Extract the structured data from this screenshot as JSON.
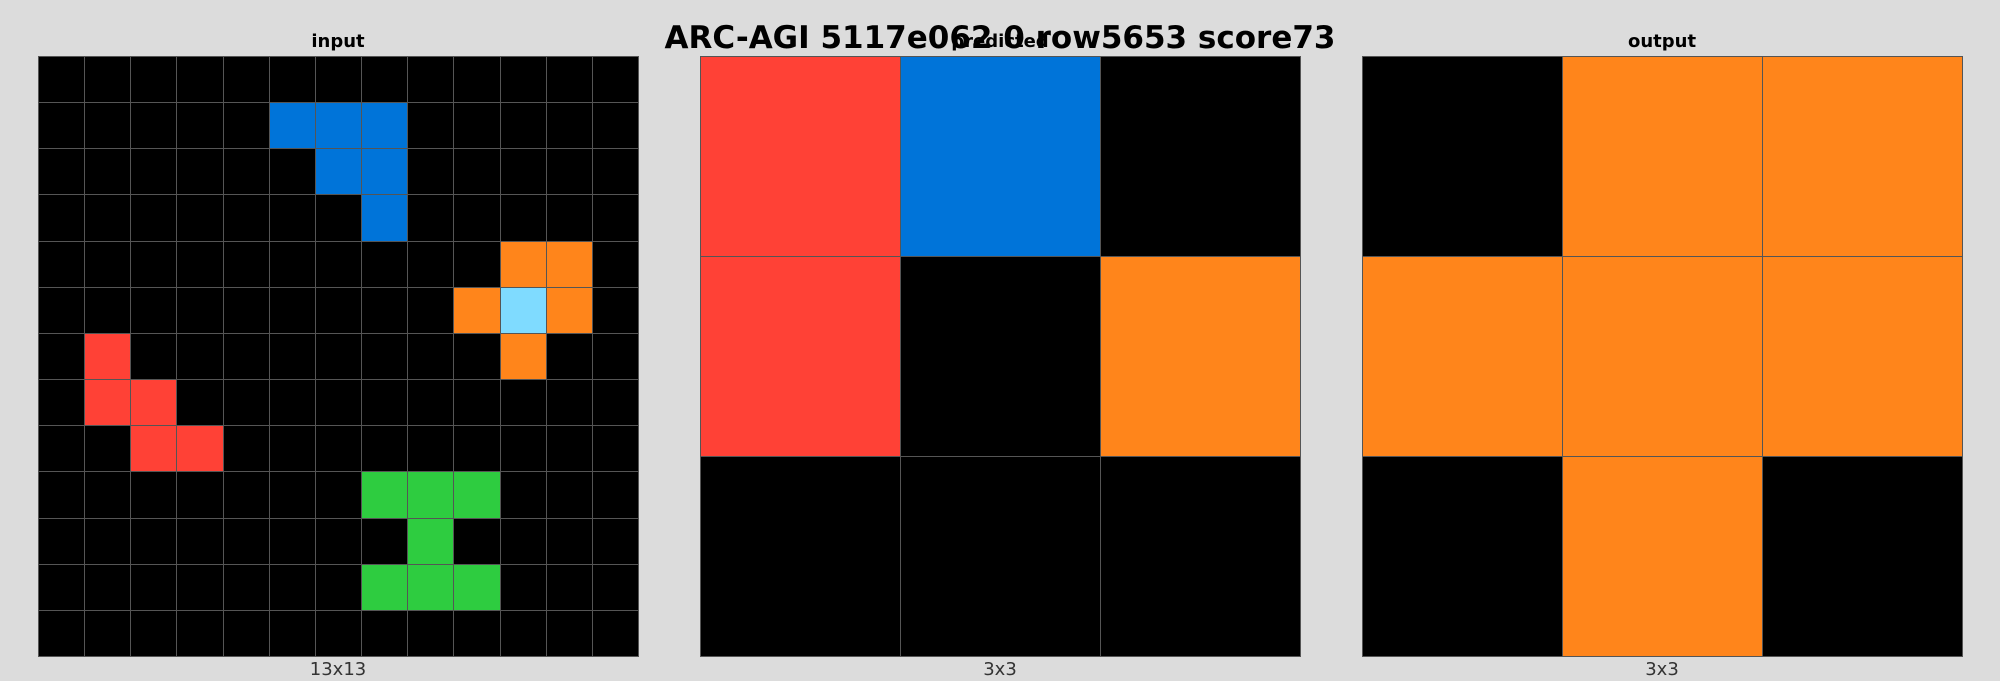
{
  "title": "ARC-AGI 5117e062 0 row5653 score73",
  "colors": {
    "0": "#000000",
    "1": "#0074d9",
    "2": "#ff4136",
    "3": "#2ecc40",
    "7": "#ff851b",
    "8": "#7fdbff"
  },
  "panels": [
    {
      "id": "input",
      "label": "input",
      "size_label": "13x13",
      "grid": [
        [
          0,
          0,
          0,
          0,
          0,
          0,
          0,
          0,
          0,
          0,
          0,
          0,
          0
        ],
        [
          0,
          0,
          0,
          0,
          0,
          1,
          1,
          1,
          0,
          0,
          0,
          0,
          0
        ],
        [
          0,
          0,
          0,
          0,
          0,
          0,
          1,
          1,
          0,
          0,
          0,
          0,
          0
        ],
        [
          0,
          0,
          0,
          0,
          0,
          0,
          0,
          1,
          0,
          0,
          0,
          0,
          0
        ],
        [
          0,
          0,
          0,
          0,
          0,
          0,
          0,
          0,
          0,
          0,
          7,
          7,
          0
        ],
        [
          0,
          0,
          0,
          0,
          0,
          0,
          0,
          0,
          0,
          7,
          8,
          7,
          0
        ],
        [
          0,
          2,
          0,
          0,
          0,
          0,
          0,
          0,
          0,
          0,
          7,
          0,
          0
        ],
        [
          0,
          2,
          2,
          0,
          0,
          0,
          0,
          0,
          0,
          0,
          0,
          0,
          0
        ],
        [
          0,
          0,
          2,
          2,
          0,
          0,
          0,
          0,
          0,
          0,
          0,
          0,
          0
        ],
        [
          0,
          0,
          0,
          0,
          0,
          0,
          0,
          3,
          3,
          3,
          0,
          0,
          0
        ],
        [
          0,
          0,
          0,
          0,
          0,
          0,
          0,
          0,
          3,
          0,
          0,
          0,
          0
        ],
        [
          0,
          0,
          0,
          0,
          0,
          0,
          0,
          3,
          3,
          3,
          0,
          0,
          0
        ],
        [
          0,
          0,
          0,
          0,
          0,
          0,
          0,
          0,
          0,
          0,
          0,
          0,
          0
        ]
      ]
    },
    {
      "id": "predicted",
      "label": "predicted",
      "size_label": "3x3",
      "grid": [
        [
          2,
          1,
          0
        ],
        [
          2,
          0,
          7
        ],
        [
          0,
          0,
          0
        ]
      ]
    },
    {
      "id": "output",
      "label": "output",
      "size_label": "3x3",
      "grid": [
        [
          0,
          7,
          7
        ],
        [
          7,
          7,
          7
        ],
        [
          0,
          7,
          0
        ]
      ]
    }
  ]
}
